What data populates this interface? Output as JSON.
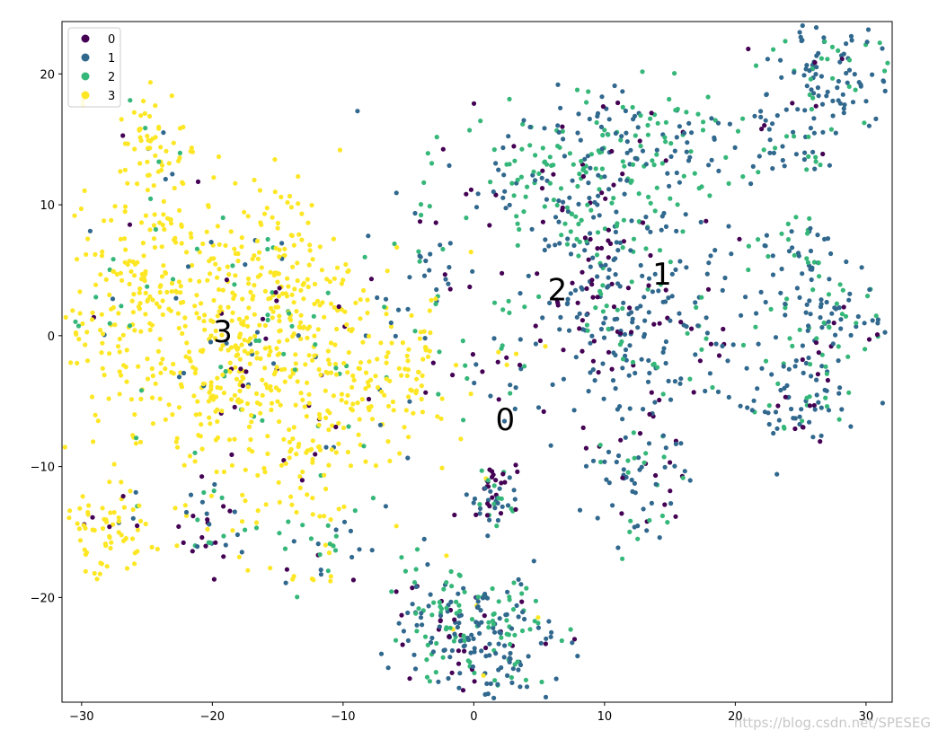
{
  "chart_data": {
    "type": "scatter",
    "title": "",
    "xlabel": "",
    "ylabel": "",
    "xlim": [
      -31.5,
      32
    ],
    "ylim": [
      -28,
      24
    ],
    "x_ticks": [
      -30,
      -20,
      -10,
      0,
      10,
      20,
      30
    ],
    "y_ticks": [
      -20,
      -10,
      0,
      10,
      20
    ],
    "grid": false,
    "legend_position": "top-left",
    "series_colors": [
      "#440154",
      "#31688e",
      "#35b779",
      "#fde725"
    ],
    "legend": [
      {
        "label": "0",
        "color": "#440154"
      },
      {
        "label": "1",
        "color": "#31688e"
      },
      {
        "label": "2",
        "color": "#35b779"
      },
      {
        "label": "3",
        "color": "#fde725"
      }
    ],
    "cluster_labels": [
      {
        "text": "0",
        "x": 2.4,
        "y": -7.2
      },
      {
        "text": "1",
        "x": 14.4,
        "y": 3.9
      },
      {
        "text": "2",
        "x": 6.4,
        "y": 2.7
      },
      {
        "text": "3",
        "x": -19.2,
        "y": -0.5
      }
    ],
    "clusters": [
      {
        "cx": -26,
        "cy": 3,
        "sx": 3.2,
        "sy": 5.5,
        "n": 240,
        "mix": [
          0.02,
          0.03,
          0.05,
          0.9
        ]
      },
      {
        "cx": -18,
        "cy": -1,
        "sx": 4.0,
        "sy": 5.0,
        "n": 330,
        "mix": [
          0.03,
          0.04,
          0.08,
          0.85
        ]
      },
      {
        "cx": -12,
        "cy": -6,
        "sx": 3.5,
        "sy": 5.0,
        "n": 160,
        "mix": [
          0.04,
          0.06,
          0.12,
          0.78
        ]
      },
      {
        "cx": -15,
        "cy": 6,
        "sx": 3.0,
        "sy": 3.0,
        "n": 90,
        "mix": [
          0.02,
          0.03,
          0.05,
          0.9
        ]
      },
      {
        "cx": -7,
        "cy": -2,
        "sx": 3.5,
        "sy": 3.5,
        "n": 110,
        "mix": [
          0.04,
          0.05,
          0.06,
          0.85
        ]
      },
      {
        "cx": -28,
        "cy": -15,
        "sx": 1.6,
        "sy": 1.6,
        "n": 70,
        "mix": [
          0.04,
          0.05,
          0.02,
          0.89
        ]
      },
      {
        "cx": -24.5,
        "cy": 15,
        "sx": 1.3,
        "sy": 2.0,
        "n": 50,
        "mix": [
          0.03,
          0.04,
          0.03,
          0.9
        ]
      },
      {
        "cx": -20,
        "cy": -14,
        "sx": 1.5,
        "sy": 1.5,
        "n": 35,
        "mix": [
          0.3,
          0.35,
          0.25,
          0.1
        ]
      },
      {
        "cx": -12,
        "cy": -17,
        "sx": 2.0,
        "sy": 1.5,
        "n": 35,
        "mix": [
          0.15,
          0.3,
          0.35,
          0.2
        ]
      },
      {
        "cx": 1.5,
        "cy": -23,
        "sx": 2.5,
        "sy": 2.5,
        "n": 170,
        "mix": [
          0.12,
          0.5,
          0.36,
          0.02
        ]
      },
      {
        "cx": -3,
        "cy": -22,
        "sx": 2.0,
        "sy": 2.5,
        "n": 90,
        "mix": [
          0.12,
          0.45,
          0.41,
          0.02
        ]
      },
      {
        "cx": 1.5,
        "cy": -12,
        "sx": 1.3,
        "sy": 1.2,
        "n": 55,
        "mix": [
          0.4,
          0.35,
          0.25,
          0.0
        ]
      },
      {
        "cx": -3,
        "cy": 6,
        "sx": 2.5,
        "sy": 3.5,
        "n": 55,
        "mix": [
          0.12,
          0.45,
          0.4,
          0.03
        ]
      },
      {
        "cx": 2,
        "cy": -3,
        "sx": 2.0,
        "sy": 3.0,
        "n": 35,
        "mix": [
          0.2,
          0.4,
          0.3,
          0.1
        ]
      },
      {
        "cx": 7,
        "cy": 12,
        "sx": 4.0,
        "sy": 3.0,
        "n": 180,
        "mix": [
          0.12,
          0.45,
          0.43,
          0.0
        ]
      },
      {
        "cx": 14,
        "cy": 14,
        "sx": 3.5,
        "sy": 2.5,
        "n": 110,
        "mix": [
          0.08,
          0.35,
          0.57,
          0.0
        ]
      },
      {
        "cx": 13,
        "cy": 1,
        "sx": 3.5,
        "sy": 4.0,
        "n": 210,
        "mix": [
          0.2,
          0.62,
          0.18,
          0.0
        ]
      },
      {
        "cx": 12,
        "cy": -11,
        "sx": 2.2,
        "sy": 2.5,
        "n": 75,
        "mix": [
          0.18,
          0.55,
          0.27,
          0.0
        ]
      },
      {
        "cx": 8,
        "cy": 5,
        "sx": 2.5,
        "sy": 3.0,
        "n": 70,
        "mix": [
          0.25,
          0.45,
          0.3,
          0.0
        ]
      },
      {
        "cx": 27,
        "cy": 20,
        "sx": 2.5,
        "sy": 2.5,
        "n": 120,
        "mix": [
          0.05,
          0.7,
          0.25,
          0.0
        ]
      },
      {
        "cx": 24,
        "cy": 15,
        "sx": 2.5,
        "sy": 2.0,
        "n": 40,
        "mix": [
          0.05,
          0.55,
          0.4,
          0.0
        ]
      },
      {
        "cx": 27,
        "cy": 2,
        "sx": 2.5,
        "sy": 2.5,
        "n": 110,
        "mix": [
          0.05,
          0.65,
          0.3,
          0.0
        ]
      },
      {
        "cx": 25,
        "cy": -5,
        "sx": 2.3,
        "sy": 2.0,
        "n": 80,
        "mix": [
          0.1,
          0.65,
          0.25,
          0.0
        ]
      },
      {
        "cx": 24,
        "cy": 7,
        "sx": 1.5,
        "sy": 1.2,
        "n": 25,
        "mix": [
          0.05,
          0.6,
          0.35,
          0.0
        ]
      }
    ]
  },
  "watermark": "https://blog.csdn.net/SPESEG"
}
